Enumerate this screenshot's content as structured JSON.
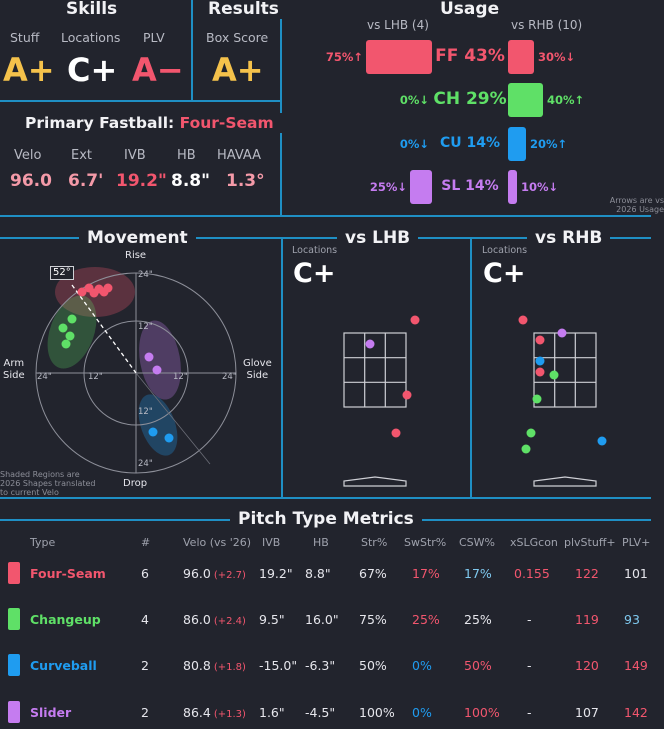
{
  "colors": {
    "four_seam": "#f2566e",
    "changeup": "#5fe067",
    "curveball": "#1f9cf0",
    "slider": "#c57cf0",
    "accent_line": "#1f8fc4",
    "background": "#22242d"
  },
  "skills": {
    "title": "Skills",
    "stuff_label": "Stuff",
    "stuff_grade": "A+",
    "locations_label": "Locations",
    "locations_grade": "C+",
    "plv_label": "PLV",
    "plv_grade": "A−"
  },
  "results": {
    "title": "Results",
    "box_score_label": "Box Score",
    "box_score_grade": "A+"
  },
  "primary_fastball": {
    "title": "Primary Fastball:",
    "pitch": "Four-Seam",
    "metrics": [
      {
        "label": "Velo",
        "value": "96.0"
      },
      {
        "label": "Ext",
        "value": "6.7'"
      },
      {
        "label": "IVB",
        "value": "19.2\""
      },
      {
        "label": "HB",
        "value": "8.8\""
      },
      {
        "label": "HAVAA",
        "value": "1.3°"
      }
    ]
  },
  "usage": {
    "title": "Usage",
    "lhb_header": "vs LHB (4)",
    "rhb_header": "vs RHB (10)",
    "note_line1": "Arrows are vs",
    "note_line2": "2026 Usage",
    "rows": [
      {
        "name": "FF 43%",
        "lhb_pct": "75%↑",
        "rhb_pct": "30%↓",
        "lhb_value": 75,
        "rhb_value": 30
      },
      {
        "name": "CH 29%",
        "lhb_pct": "0%↓",
        "rhb_pct": "40%↑",
        "lhb_value": 0,
        "rhb_value": 40
      },
      {
        "name": "CU 14%",
        "lhb_pct": "0%↓",
        "rhb_pct": "20%↑",
        "lhb_value": 0,
        "rhb_value": 20
      },
      {
        "name": "SL 14%",
        "lhb_pct": "25%↓",
        "rhb_pct": "10%↓",
        "lhb_value": 25,
        "rhb_value": 10
      }
    ]
  },
  "movement": {
    "title": "Movement",
    "rise_label": "Rise",
    "drop_label": "Drop",
    "arm_side_line1": "Arm",
    "arm_side_line2": "Side",
    "glove_side_line1": "Glove",
    "glove_side_line2": "Side",
    "arm_angle": "52°",
    "ring_12": "12\"",
    "ring_24": "24\"",
    "note_line1": "Shaded Regions are",
    "note_line2": "2026 Shapes translated",
    "note_line3": "to current Velo"
  },
  "vs_lhb": {
    "title": "vs LHB",
    "locations_label": "Locations",
    "grade": "C+"
  },
  "vs_rhb": {
    "title": "vs RHB",
    "locations_label": "Locations",
    "grade": "C+"
  },
  "metrics_table": {
    "title": "Pitch Type Metrics",
    "headers": [
      "Type",
      "#",
      "Velo (vs '26)",
      "IVB",
      "HB",
      "Str%",
      "SwStr%",
      "CSW%",
      "xSLGcon",
      "plvStuff+",
      "PLV+"
    ],
    "rows": [
      {
        "type": "Four-Seam",
        "count": "6",
        "velo": "96.0",
        "delta": "(+2.7)",
        "ivb": "19.2\"",
        "hb": "8.8\"",
        "str": "67%",
        "swstr": "17%",
        "csw": "17%",
        "xslg": "0.155",
        "stuff": "122",
        "plv": "101"
      },
      {
        "type": "Changeup",
        "count": "4",
        "velo": "86.0",
        "delta": "(+2.4)",
        "ivb": "9.5\"",
        "hb": "16.0\"",
        "str": "75%",
        "swstr": "25%",
        "csw": "25%",
        "xslg": "-",
        "stuff": "119",
        "plv": "93"
      },
      {
        "type": "Curveball",
        "count": "2",
        "velo": "80.8",
        "delta": "(+1.8)",
        "ivb": "-15.0\"",
        "hb": "-6.3\"",
        "str": "50%",
        "swstr": "0%",
        "csw": "50%",
        "xslg": "-",
        "stuff": "120",
        "plv": "149"
      },
      {
        "type": "Slider",
        "count": "2",
        "velo": "86.4",
        "delta": "(+1.3)",
        "ivb": "1.6\"",
        "hb": "-4.5\"",
        "str": "100%",
        "swstr": "0%",
        "csw": "100%",
        "xslg": "-",
        "stuff": "107",
        "plv": "142"
      }
    ]
  }
}
